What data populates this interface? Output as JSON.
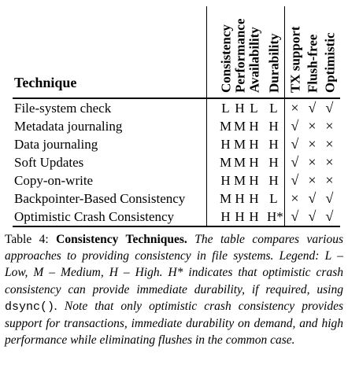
{
  "table": {
    "technique_header": "Technique",
    "columns": [
      "Consistency",
      "Performance",
      "Availability",
      "Durability",
      "TX support",
      "Flush-free",
      "Optimistic"
    ],
    "rows": [
      {
        "name": "File-system check",
        "values": [
          "L",
          "H",
          "L",
          "L",
          "×",
          "√",
          "√"
        ]
      },
      {
        "name": "Metadata journaling",
        "values": [
          "M",
          "M",
          "H",
          "H",
          "√",
          "×",
          "×"
        ]
      },
      {
        "name": "Data journaling",
        "values": [
          "H",
          "M",
          "H",
          "H",
          "√",
          "×",
          "×"
        ]
      },
      {
        "name": "Soft Updates",
        "values": [
          "M",
          "M",
          "H",
          "H",
          "√",
          "×",
          "×"
        ]
      },
      {
        "name": "Copy-on-write",
        "values": [
          "H",
          "M",
          "H",
          "H",
          "√",
          "×",
          "×"
        ]
      },
      {
        "name": "Backpointer-Based Consistency",
        "values": [
          "M",
          "H",
          "H",
          "L",
          "×",
          "√",
          "√"
        ]
      },
      {
        "name": "Optimistic Crash Consistency",
        "values": [
          "H",
          "H",
          "H",
          "H*",
          "√",
          "√",
          "√"
        ]
      }
    ]
  },
  "caption": {
    "label": "Table 4:",
    "title": "Consistency Techniques.",
    "body_part1": "The table compares various approaches to providing consistency in file systems. Legend: L – Low, M – Medium, H – High. H* indicates that optimistic crash consistency can provide immediate durability, if required, using",
    "code": "dsync()",
    "body_part2": ". Note that only optimistic crash consistency provides support for transactions, immediate durability on demand, and high performance while eliminating flushes in the common case."
  }
}
